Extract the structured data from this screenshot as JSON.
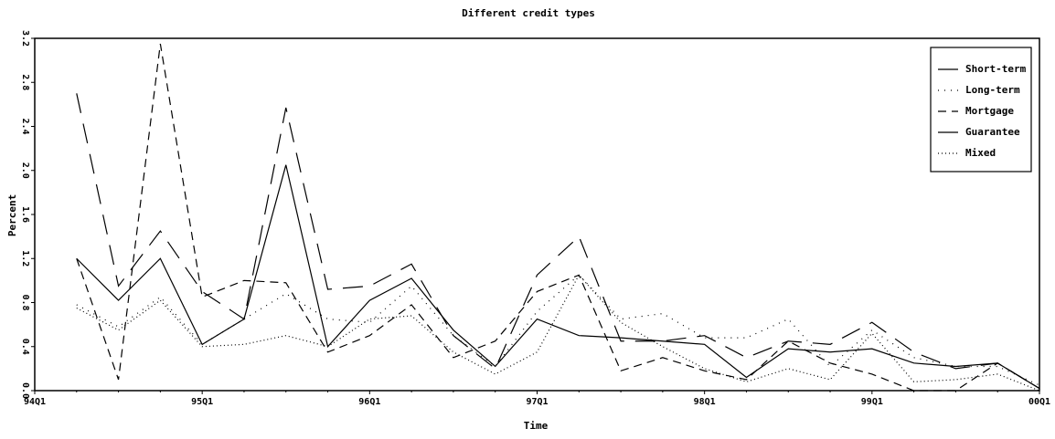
{
  "chart_data": {
    "type": "line",
    "title": "Different credit types",
    "x_label": "Time",
    "y_label": "Percent",
    "categories": [
      "94Q1",
      null,
      null,
      null,
      "95Q1",
      null,
      null,
      null,
      "96Q1",
      null,
      null,
      null,
      "97Q1",
      null,
      null,
      null,
      "98Q1",
      null,
      null,
      null,
      "99Q1",
      null,
      null,
      null,
      "00Q1"
    ],
    "ylim": [
      0,
      3.2
    ],
    "yticks": [
      {
        "value": 0,
        "label": "0.0"
      },
      0.4,
      0.8,
      1.2,
      1.6,
      {
        "value": 2,
        "label": "2.0"
      },
      2.4,
      2.8,
      3.2
    ],
    "legend": "upper right",
    "series": [
      {
        "name": "Short-term",
        "color": "#000000",
        "dash": "22,12",
        "values": [
          null,
          2.7,
          0.95,
          1.45,
          0.9,
          0.65,
          2.57,
          0.92,
          0.95,
          1.15,
          0.5,
          0.2,
          1.05,
          1.4,
          0.45,
          0.45,
          0.5,
          0.3,
          0.45,
          0.42,
          0.62,
          0.35,
          0.2,
          0.25,
          0.02
        ]
      },
      {
        "name": "Long-term",
        "color": "#000000",
        "dash": "1,6",
        "values": [
          null,
          0.78,
          0.58,
          0.85,
          0.42,
          0.65,
          0.88,
          0.65,
          0.62,
          0.95,
          0.5,
          0.22,
          0.72,
          1.05,
          0.65,
          0.7,
          0.48,
          0.48,
          0.65,
          0.22,
          0.55,
          0.3,
          0.22,
          0.22,
          0.05
        ]
      },
      {
        "name": "Mortgage",
        "color": "#000000",
        "dash": "9,6",
        "values": [
          null,
          1.2,
          0.1,
          3.15,
          0.85,
          1.0,
          0.98,
          0.35,
          0.5,
          0.78,
          0.3,
          0.45,
          0.9,
          1.05,
          0.18,
          0.3,
          0.18,
          0.1,
          0.45,
          0.25,
          0.15,
          0.0,
          0.0,
          0.25,
          0.02
        ]
      },
      {
        "name": "Guarantee",
        "color": "#000000",
        "dash": "none",
        "values": [
          null,
          1.2,
          0.82,
          1.2,
          0.42,
          0.65,
          2.05,
          0.4,
          0.82,
          1.02,
          0.55,
          0.22,
          0.65,
          0.5,
          0.48,
          0.45,
          0.42,
          0.12,
          0.38,
          0.35,
          0.38,
          0.25,
          0.22,
          0.25,
          0.02
        ]
      },
      {
        "name": "Mixed",
        "color": "#000000",
        "dash": "1,3",
        "values": [
          null,
          0.75,
          0.55,
          0.82,
          0.4,
          0.42,
          0.5,
          0.4,
          0.65,
          0.68,
          0.35,
          0.15,
          0.35,
          1.05,
          0.62,
          0.4,
          0.2,
          0.08,
          0.2,
          0.1,
          0.52,
          0.08,
          0.1,
          0.15,
          0.0
        ]
      }
    ]
  }
}
